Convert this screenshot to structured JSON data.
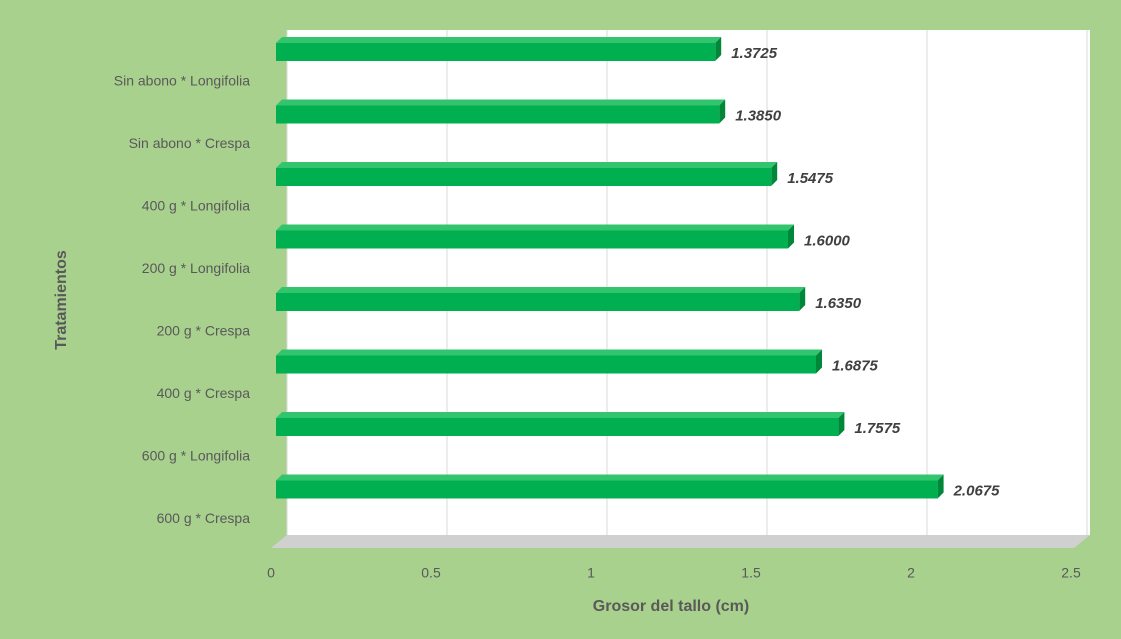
{
  "chart_data": {
    "type": "bar",
    "orientation": "horizontal",
    "x_label": "Grosor del tallo (cm)",
    "y_label": "Tratamientos",
    "categories": [
      "Sin abono * Longifolia",
      "Sin abono * Crespa",
      "400 g * Longifolia",
      "200 g * Longifolia",
      "200 g * Crespa",
      "400 g * Crespa",
      "600 g * Longifolia",
      "600 g * Crespa"
    ],
    "values": [
      1.3725,
      1.385,
      1.5475,
      1.6,
      1.635,
      1.6875,
      1.7575,
      2.0675
    ],
    "value_labels": [
      "1.3725",
      "1.3850",
      "1.5475",
      "1.6000",
      "1.6350",
      "1.6875",
      "1.7575",
      "2.0675"
    ],
    "color": "#00b050",
    "xlim": [
      0,
      2.5
    ],
    "xticks": [
      0,
      0.5,
      1,
      1.5,
      2,
      2.5
    ],
    "grid": true
  }
}
